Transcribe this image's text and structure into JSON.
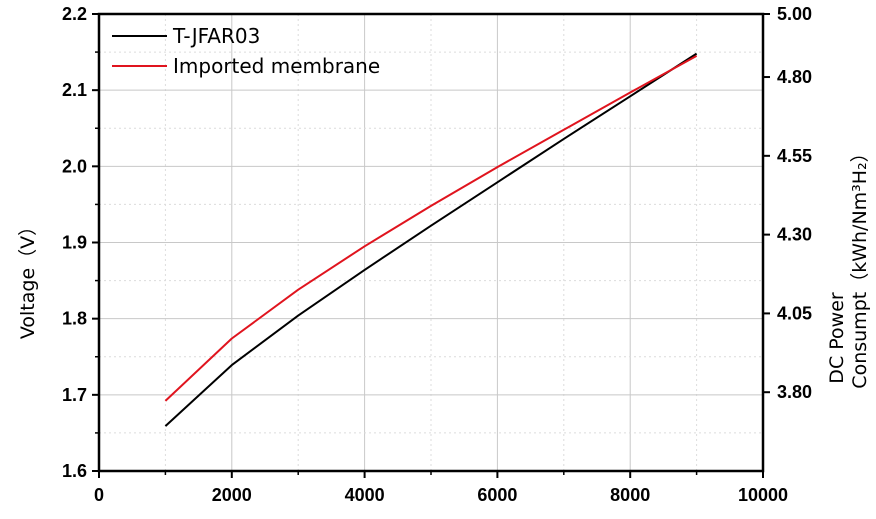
{
  "chart_data": {
    "type": "line",
    "xlabel": "",
    "ylabel": "Voltage（V）",
    "y2label_line1": "DC Power",
    "y2label_line2": "Consumpt（kWh/Nm³H₂）",
    "xlim": [
      0,
      10000
    ],
    "ylim": [
      1.6,
      2.2
    ],
    "y2lim": [
      3.55,
      5.0
    ],
    "x_ticks": [
      "0",
      "2000",
      "4000",
      "6000",
      "8000",
      "10000"
    ],
    "y_ticks": [
      "1.6",
      "1.7",
      "1.8",
      "1.9",
      "2.0",
      "2.1",
      "2.2"
    ],
    "y2_ticks": [
      "3.80",
      "4.05",
      "4.30",
      "4.55",
      "4.80",
      "5.00"
    ],
    "grid": true,
    "legend_position": "top-left",
    "series": [
      {
        "name": "T-JFAR03",
        "color": "#000000",
        "x": [
          1000,
          2000,
          3000,
          4000,
          5000,
          6000,
          7000,
          8000,
          9000
        ],
        "y": [
          1.659,
          1.739,
          1.804,
          1.864,
          1.922,
          1.979,
          2.036,
          2.092,
          2.148
        ]
      },
      {
        "name": "Imported membrane",
        "color": "#e0141e",
        "x": [
          1000,
          2000,
          3000,
          4000,
          5000,
          6000,
          7000,
          8000,
          9000
        ],
        "y": [
          1.692,
          1.774,
          1.838,
          1.895,
          1.948,
          1.999,
          2.048,
          2.097,
          2.145
        ]
      }
    ]
  }
}
